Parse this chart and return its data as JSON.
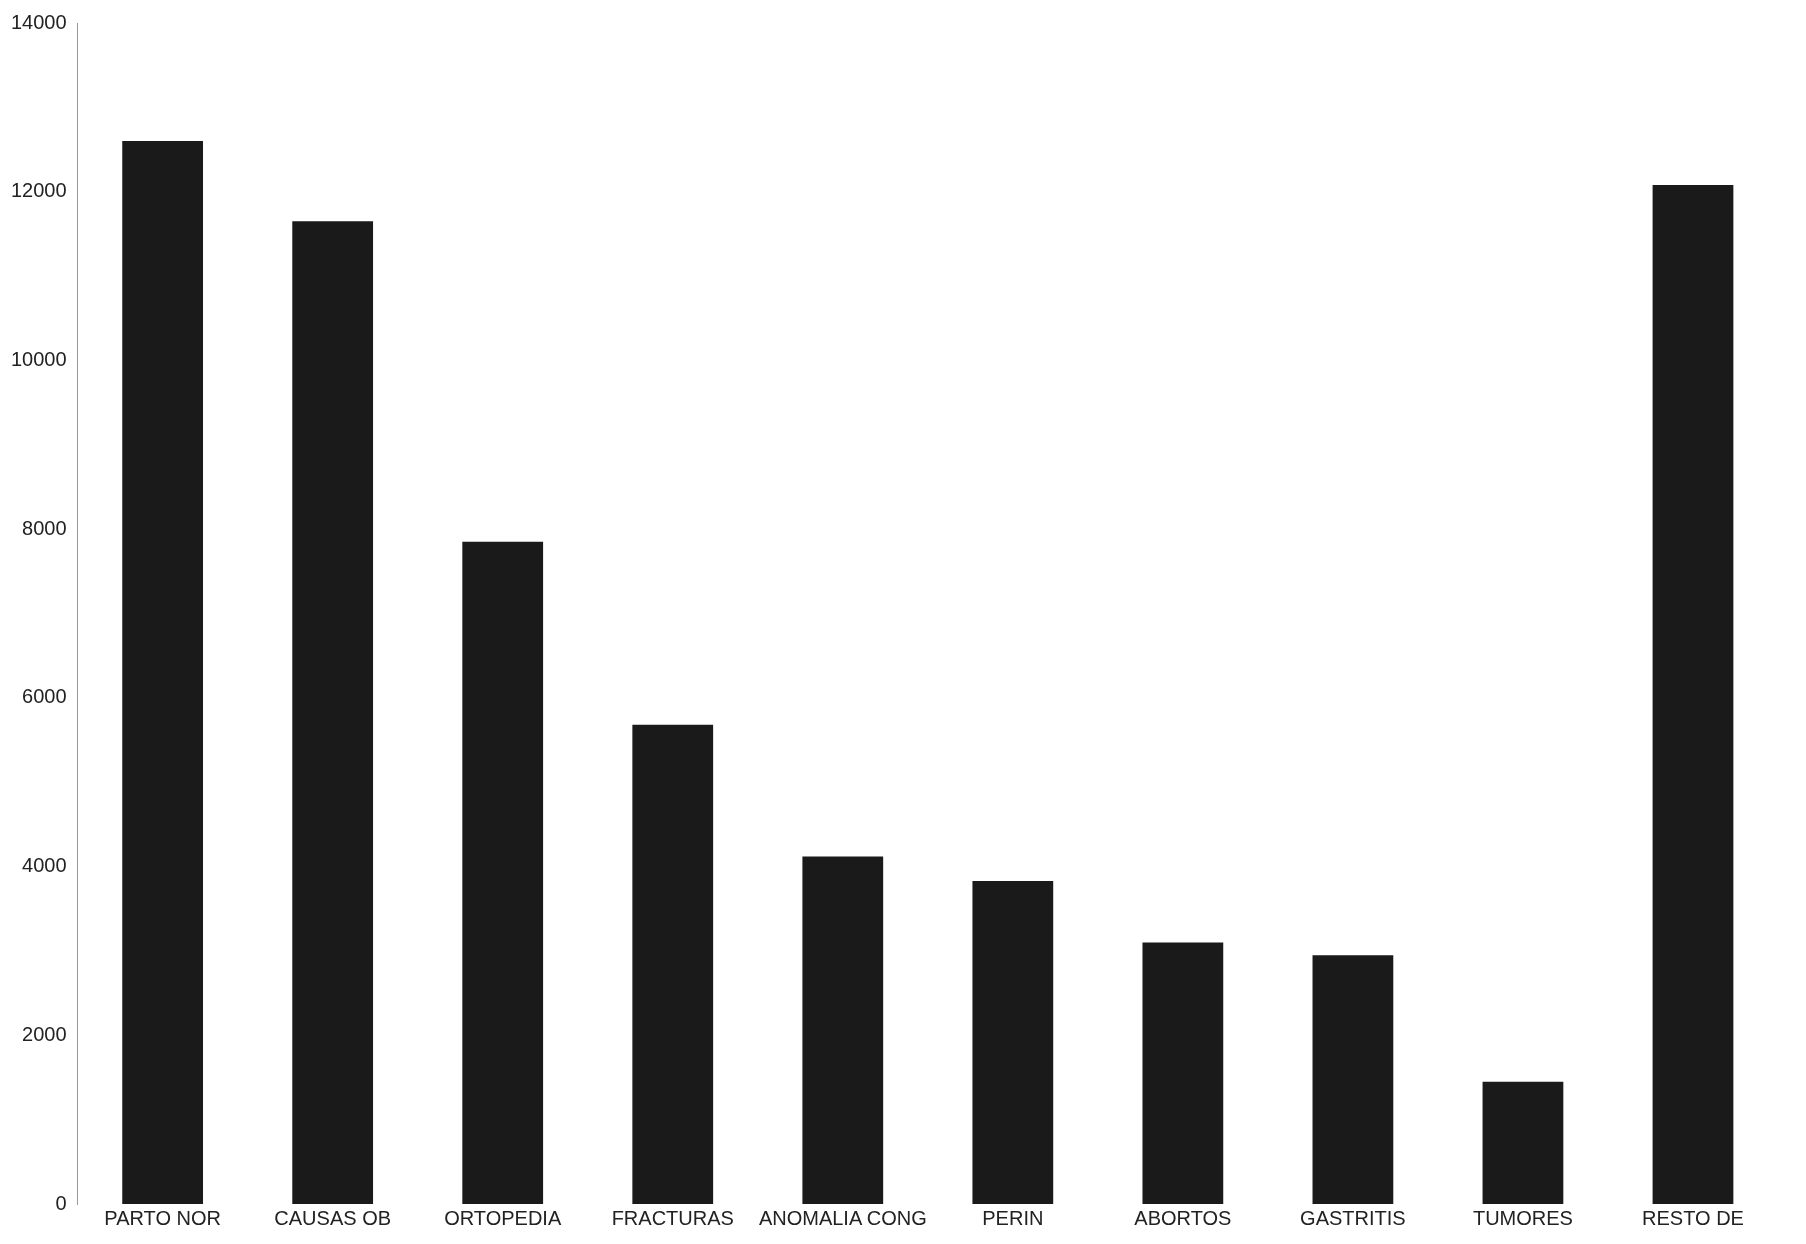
{
  "chart_data": {
    "type": "bar",
    "categories": [
      "PARTO NOR",
      "CAUSAS OB",
      "ORTOPEDIA",
      "FRACTURAS",
      "ANOMALIA CONG",
      "PERIN",
      "ABORTOS",
      "GASTRITIS",
      "TUMORES",
      "RESTO DE"
    ],
    "values": [
      12600,
      11650,
      7850,
      5680,
      4120,
      3830,
      3100,
      2950,
      1450,
      12080
    ],
    "color": "#1a1a1a",
    "ylim": [
      0,
      14000
    ],
    "yticks": [
      0,
      2000,
      4000,
      6000,
      8000,
      10000,
      12000,
      14000
    ],
    "grid": false,
    "legend": false
  }
}
